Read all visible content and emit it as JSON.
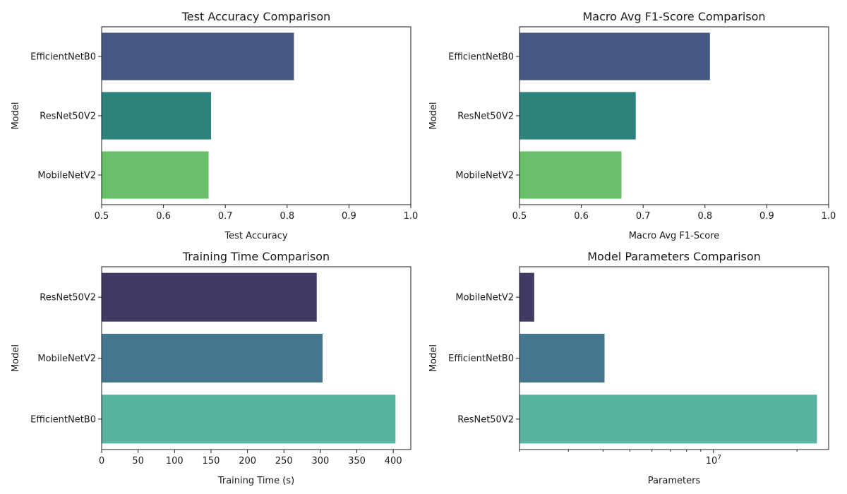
{
  "chart_data": [
    {
      "type": "bar",
      "orientation": "horizontal",
      "title": "Test Accuracy Comparison",
      "xlabel": "Test Accuracy",
      "ylabel": "Model",
      "categories": [
        "EfficientNetB0",
        "ResNet50V2",
        "MobileNetV2"
      ],
      "values": [
        0.811,
        0.677,
        0.673
      ],
      "colors": [
        "#455882",
        "#2e827c",
        "#6abf6a"
      ],
      "xlim": [
        0.5,
        1.0
      ],
      "xscale": "linear",
      "xticks": [
        0.5,
        0.6,
        0.7,
        0.8,
        0.9,
        1.0
      ],
      "xtick_labels": [
        "0.5",
        "0.6",
        "0.7",
        "0.8",
        "0.9",
        "1.0"
      ],
      "grid": false
    },
    {
      "type": "bar",
      "orientation": "horizontal",
      "title": "Macro Avg F1-Score Comparison",
      "xlabel": "Macro Avg F1-Score",
      "ylabel": "Model",
      "categories": [
        "EfficientNetB0",
        "ResNet50V2",
        "MobileNetV2"
      ],
      "values": [
        0.808,
        0.688,
        0.665
      ],
      "colors": [
        "#455882",
        "#2e827c",
        "#6abf6a"
      ],
      "xlim": [
        0.5,
        1.0
      ],
      "xscale": "linear",
      "xticks": [
        0.5,
        0.6,
        0.7,
        0.8,
        0.9,
        1.0
      ],
      "xtick_labels": [
        "0.5",
        "0.6",
        "0.7",
        "0.8",
        "0.9",
        "1.0"
      ],
      "grid": false
    },
    {
      "type": "bar",
      "orientation": "horizontal",
      "title": "Training Time Comparison",
      "xlabel": "Training Time (s)",
      "ylabel": "Model",
      "categories": [
        "ResNet50V2",
        "MobileNetV2",
        "EfficientNetB0"
      ],
      "values": [
        295,
        303,
        403
      ],
      "colors": [
        "#433a63",
        "#44768f",
        "#59b3a1"
      ],
      "xlim": [
        0,
        424
      ],
      "xscale": "linear",
      "xticks": [
        0,
        50,
        100,
        150,
        200,
        250,
        300,
        350,
        400
      ],
      "xtick_labels": [
        "0",
        "50",
        "100",
        "150",
        "200",
        "250",
        "300",
        "350",
        "400"
      ],
      "grid": false
    },
    {
      "type": "bar",
      "orientation": "horizontal",
      "title": "Model Parameters Comparison",
      "xlabel": "Parameters",
      "ylabel": "Model",
      "categories": [
        "MobileNetV2",
        "EfficientNetB0",
        "ResNet50V2"
      ],
      "values": [
        2260000,
        4050000,
        23600000
      ],
      "colors": [
        "#433a63",
        "#44768f",
        "#59b3a1"
      ],
      "xlim": [
        2000000,
        26000000
      ],
      "xscale": "log",
      "xticks": [
        10000000
      ],
      "xtick_labels": [
        "10^7"
      ],
      "grid": false
    }
  ]
}
